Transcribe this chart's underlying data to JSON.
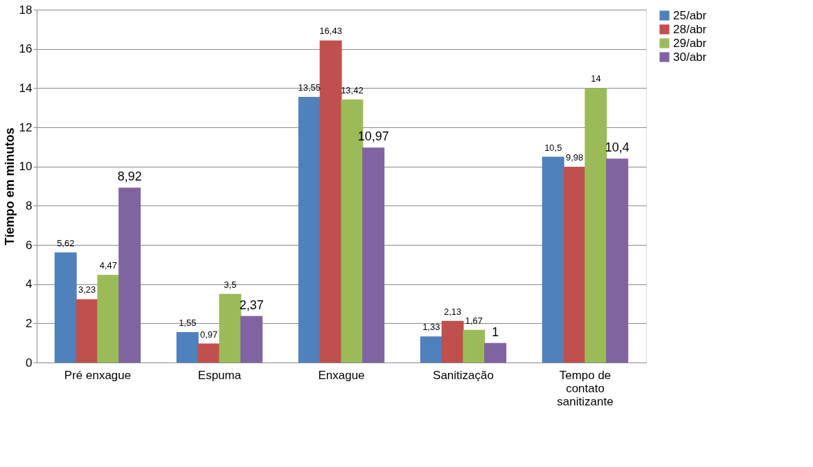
{
  "chart_data": {
    "type": "bar",
    "ylabel": "Tíempo em minutos",
    "categories": [
      "Pré enxague",
      "Espuma",
      "Enxague",
      "Sanitização",
      "Tempo de contato sanitizante"
    ],
    "series": [
      {
        "name": "25/abr",
        "color": "#4f81bd",
        "values": [
          5.62,
          1.55,
          13.55,
          1.33,
          10.5
        ],
        "value_labels": [
          "5,62",
          "1,55",
          "13,55",
          "1,33",
          "10,5"
        ]
      },
      {
        "name": "28/abr",
        "color": "#c0504d",
        "values": [
          3.23,
          0.97,
          16.43,
          2.13,
          9.98
        ],
        "value_labels": [
          "3,23",
          "0,97",
          "16,43",
          "2,13",
          "9,98"
        ]
      },
      {
        "name": "29/abr",
        "color": "#9bbb59",
        "values": [
          4.47,
          3.5,
          13.42,
          1.67,
          14
        ],
        "value_labels": [
          "4,47",
          "3,5",
          "13,42",
          "1,67",
          "14"
        ]
      },
      {
        "name": "30/abr",
        "color": "#8064a2",
        "values": [
          8.92,
          2.37,
          10.97,
          1,
          10.4
        ],
        "value_labels": [
          "8,92",
          "2,37",
          "10,97",
          "1",
          "10,4"
        ]
      }
    ],
    "ylim": [
      0,
      18
    ],
    "yticks": [
      0,
      2,
      4,
      6,
      8,
      10,
      12,
      14,
      16,
      18
    ],
    "grid": "y",
    "legend": "right"
  }
}
